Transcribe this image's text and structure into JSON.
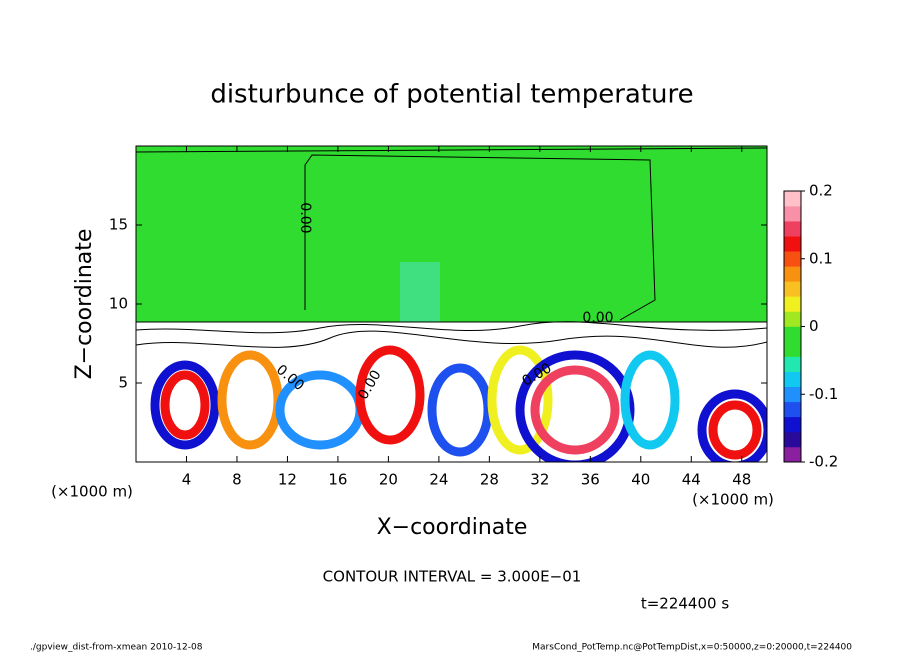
{
  "chart_data": {
    "type": "contour",
    "title": "disturbunce of potential temperature",
    "x_label": "X−coordinate",
    "y_label": "Z−coordinate",
    "x_unit_label": "(×1000 m)",
    "xlim": [
      0,
      50
    ],
    "xticks": [
      4,
      8,
      12,
      16,
      20,
      24,
      28,
      32,
      36,
      40,
      44,
      48
    ],
    "ylim": [
      0,
      20
    ],
    "yticks": [
      5,
      10,
      15
    ],
    "contour_label": "0.00",
    "contour_interval": "CONTOUR INTERVAL = 3.000E−01",
    "time_label": "t=224400 s",
    "colorbar": {
      "lim": [
        -0.2,
        0.2
      ],
      "ticks": [
        -0.2,
        -0.1,
        0,
        0.1,
        0.2
      ],
      "colors": [
        "#8a1fa0",
        "#2a0a9a",
        "#1010d0",
        "#1e50f0",
        "#2090ff",
        "#10c8f0",
        "#20e8b0",
        "#30dc30",
        "#30dc30",
        "#a0e820",
        "#f0f020",
        "#f8c020",
        "#f89010",
        "#f85010",
        "#f01010",
        "#f04060",
        "#f890a8",
        "#ffc0c8"
      ]
    },
    "footer_left": "./gpview_dist-from-xmean  2010-12-08",
    "footer_right": "MarsCond_PotTemp.nc@PotTempDist,x=0:50000,z=0:20000,t=224400"
  }
}
